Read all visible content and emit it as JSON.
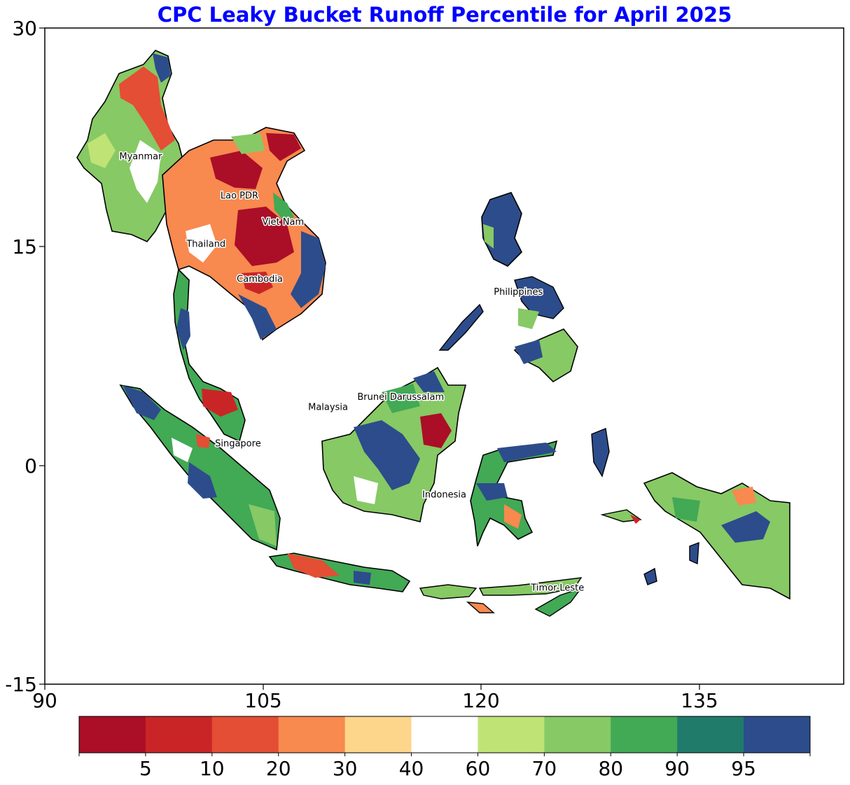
{
  "title": "CPC Leaky Bucket Runoff Percentile for April 2025",
  "title_color": "#0000ff",
  "axes": {
    "x_ticks": [
      "90",
      "105",
      "120",
      "135"
    ],
    "y_ticks": [
      "30",
      "15",
      "0",
      "-15"
    ]
  },
  "countries": [
    {
      "name": "Myanmar",
      "lon": 96.6,
      "lat": 21.0
    },
    {
      "name": "Lao PDR",
      "lon": 103.4,
      "lat": 18.3
    },
    {
      "name": "Viet Nam",
      "lon": 106.4,
      "lat": 16.5
    },
    {
      "name": "Thailand",
      "lon": 101.1,
      "lat": 15.0
    },
    {
      "name": "Cambodia",
      "lon": 104.8,
      "lat": 12.6
    },
    {
      "name": "Philippines",
      "lon": 122.6,
      "lat": 11.7
    },
    {
      "name": "Brunei Darussalam",
      "lon": 114.5,
      "lat": 4.5
    },
    {
      "name": "Malaysia",
      "lon": 109.5,
      "lat": 3.8
    },
    {
      "name": "Singapore",
      "lon": 103.3,
      "lat": 1.3
    },
    {
      "name": "Indonesia",
      "lon": 117.5,
      "lat": -2.2
    },
    {
      "name": "Timor-Leste",
      "lon": 125.3,
      "lat": -8.6
    }
  ],
  "colorbar": {
    "ticks": [
      "5",
      "10",
      "20",
      "30",
      "40",
      "60",
      "70",
      "80",
      "90",
      "95"
    ],
    "colors": [
      "#ab0e27",
      "#ca2526",
      "#e34e34",
      "#f8894f",
      "#fdd68c",
      "#ffffff",
      "#c0e376",
      "#87c965",
      "#42a955",
      "#207b6a",
      "#2d4c8b"
    ]
  }
}
